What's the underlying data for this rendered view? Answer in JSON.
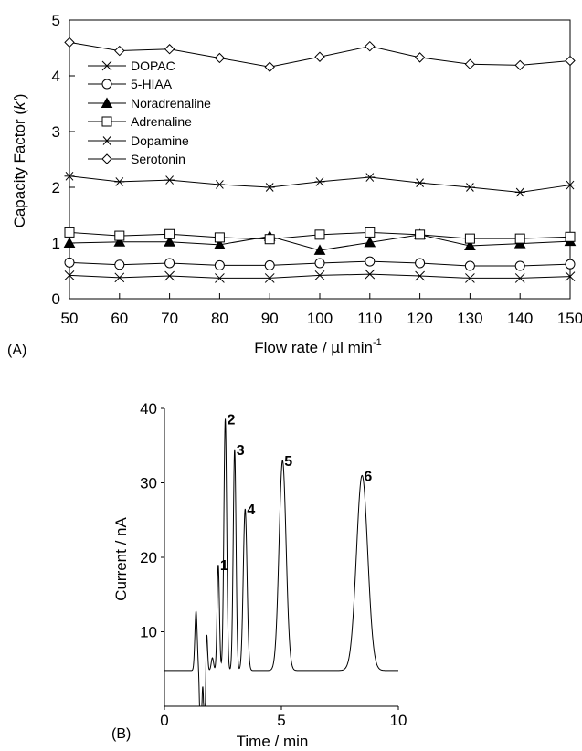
{
  "chart_data": [
    {
      "type": "line",
      "panel_label": "(A)",
      "ylabel_main": "Capacity Factor (",
      "ylabel_k": "k'",
      "ylabel_tail": ")",
      "xlabel_main": "Flow rate / µl min",
      "xlabel_sup": "-1",
      "xlim": [
        50,
        150
      ],
      "ylim": [
        0,
        5
      ],
      "x": [
        50,
        60,
        70,
        80,
        90,
        100,
        110,
        120,
        130,
        140,
        150
      ],
      "x_ticks": [
        "50",
        "60",
        "70",
        "80",
        "90",
        "100",
        "110",
        "120",
        "130",
        "140",
        "150"
      ],
      "y_ticks": [
        "0",
        "1",
        "2",
        "3",
        "4",
        "5"
      ],
      "grid": false,
      "legend_position": "top-left",
      "series": [
        {
          "name": "DOPAC",
          "marker": "x",
          "values": [
            0.42,
            0.38,
            0.41,
            0.37,
            0.37,
            0.42,
            0.44,
            0.41,
            0.37,
            0.37,
            0.4
          ]
        },
        {
          "name": "5-HIAA",
          "marker": "circle",
          "values": [
            0.65,
            0.61,
            0.64,
            0.6,
            0.6,
            0.64,
            0.67,
            0.64,
            0.59,
            0.59,
            0.62
          ]
        },
        {
          "name": "Noradrenaline",
          "marker": "triangle-filled",
          "values": [
            1.0,
            1.02,
            1.02,
            0.97,
            1.12,
            0.87,
            1.01,
            1.15,
            0.95,
            0.99,
            1.03
          ]
        },
        {
          "name": "Adrenaline",
          "marker": "square",
          "values": [
            1.19,
            1.13,
            1.16,
            1.1,
            1.07,
            1.15,
            1.19,
            1.15,
            1.08,
            1.08,
            1.11
          ]
        },
        {
          "name": "Dopamine",
          "marker": "asterisk",
          "values": [
            2.2,
            2.1,
            2.13,
            2.05,
            2.0,
            2.1,
            2.18,
            2.08,
            2.0,
            1.91,
            2.04
          ]
        },
        {
          "name": "Serotonin",
          "marker": "diamond",
          "values": [
            4.6,
            4.45,
            4.48,
            4.32,
            4.16,
            4.34,
            4.53,
            4.33,
            4.21,
            4.19,
            4.27
          ]
        }
      ]
    },
    {
      "type": "line",
      "panel_label": "(B)",
      "ylabel": "Current / nA",
      "xlabel": "Time / min",
      "xlim": [
        0,
        10
      ],
      "ylim": [
        0,
        40
      ],
      "x_ticks": [
        "0",
        "5",
        "10"
      ],
      "y_ticks": [
        "10",
        "20",
        "30",
        "40"
      ],
      "grid": false,
      "baseline": 4.8,
      "peaks": [
        {
          "t": 1.35,
          "h": 12.8,
          "w": 0.05,
          "label": ""
        },
        {
          "t": 1.55,
          "h": -6.5,
          "w": 0.04,
          "label": ""
        },
        {
          "t": 1.72,
          "h": -4.5,
          "w": 0.04,
          "label": ""
        },
        {
          "t": 1.8,
          "h": 10.5,
          "w": 0.04,
          "label": ""
        },
        {
          "t": 2.05,
          "h": 6.5,
          "w": 0.05,
          "label": ""
        },
        {
          "t": 2.3,
          "h": 19.0,
          "w": 0.05,
          "label": "1"
        },
        {
          "t": 2.6,
          "h": 38.6,
          "w": 0.06,
          "label": "2"
        },
        {
          "t": 3.0,
          "h": 34.5,
          "w": 0.06,
          "label": "3"
        },
        {
          "t": 3.45,
          "h": 26.5,
          "w": 0.08,
          "label": "4"
        },
        {
          "t": 4.4,
          "h": 0.0,
          "w": 0.06,
          "label": ""
        },
        {
          "t": 5.05,
          "h": 33.0,
          "w": 0.15,
          "label": "5"
        },
        {
          "t": 8.45,
          "h": 31.0,
          "w": 0.24,
          "label": "6"
        }
      ]
    }
  ]
}
